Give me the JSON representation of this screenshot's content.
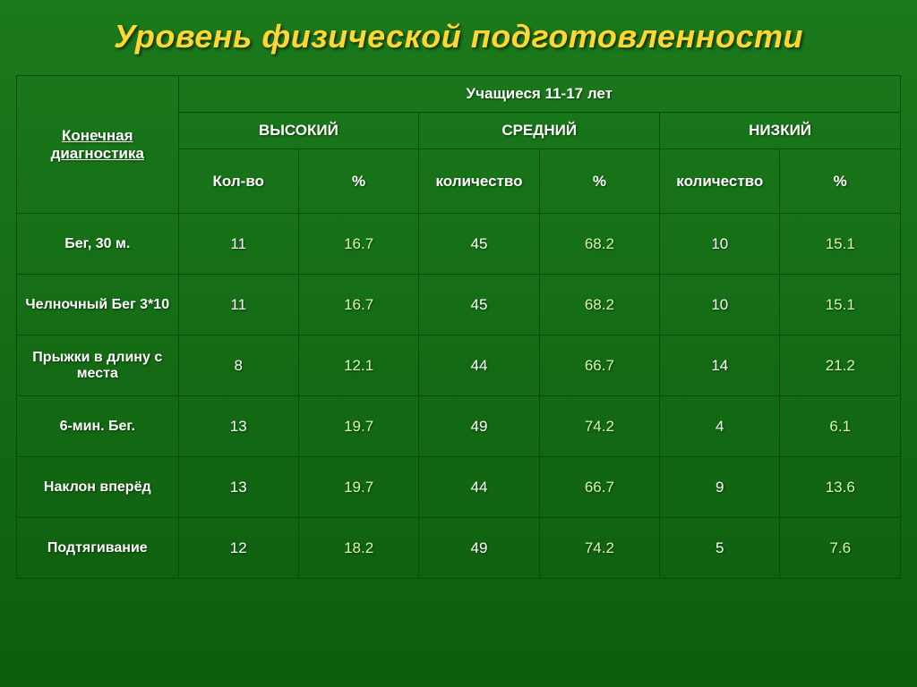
{
  "title": "Уровень физической подготовленности",
  "headers": {
    "diag": "Конечная диагностика",
    "students": "Учащиеся  11-17 лет",
    "levels": {
      "high": "ВЫСОКИЙ",
      "mid": "СРЕДНИЙ",
      "low": "НИЗКИЙ"
    },
    "count_short": "Кол-во",
    "count_long": "количество",
    "percent": "%"
  },
  "rows": [
    {
      "label": "Бег, 30 м.",
      "v": [
        "11",
        "16.7",
        "45",
        "68.2",
        "10",
        "15.1"
      ],
      "tall": false
    },
    {
      "label": "Челночный Бег  3*10",
      "v": [
        "11",
        "16.7",
        "45",
        "68.2",
        "10",
        "15.1"
      ],
      "tall": true
    },
    {
      "label": "Прыжки в длину с места",
      "v": [
        "8",
        "12.1",
        "44",
        "66.7",
        "14",
        "21.2"
      ],
      "tall": true
    },
    {
      "label": "6-мин. Бег.",
      "v": [
        "13",
        "19.7",
        "49",
        "74.2",
        "4",
        "6.1"
      ],
      "tall": false
    },
    {
      "label": "Наклон вперёд",
      "v": [
        "13",
        "19.7",
        "44",
        "66.7",
        "9",
        "13.6"
      ],
      "tall": false
    },
    {
      "label": "Подтягивание",
      "v": [
        "12",
        "18.2",
        "49",
        "74.2",
        "5",
        "7.6"
      ],
      "tall": false
    }
  ],
  "style": {
    "title_color": "#ffd633",
    "text_color": "#ffffff",
    "alt_val_color": "#d6f5b0",
    "border_color": "#0a4a0a",
    "bg_gradient": [
      "#1b7a1b",
      "#0e5d0e"
    ]
  }
}
